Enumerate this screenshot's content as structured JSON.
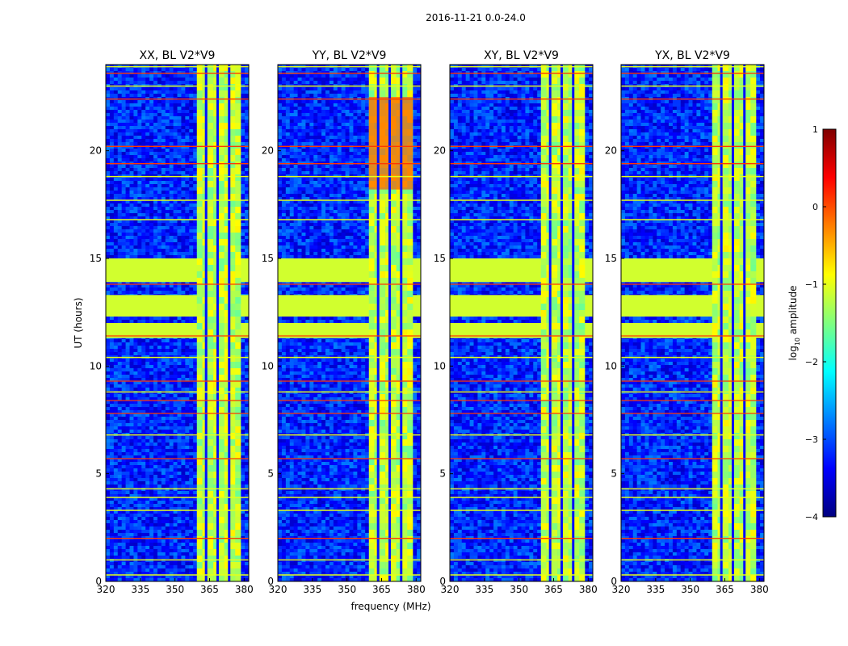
{
  "figure": {
    "suptitle": "2016-11-21 0.0-24.0",
    "xlabel": "frequency (MHz)",
    "ylabel": "UT (hours)"
  },
  "colorbar": {
    "label_prefix": "log",
    "label_sub": "10",
    "label_suffix": " amplitude",
    "range": [
      -4,
      1
    ],
    "ticks": [
      "1",
      "0",
      "−1",
      "−2",
      "−3",
      "−4"
    ],
    "tick_values": [
      1,
      0,
      -1,
      -2,
      -3,
      -4
    ],
    "colormap": "jet",
    "colors": [
      "#00007f",
      "#0000ff",
      "#007fff",
      "#00ffff",
      "#7fff7f",
      "#ffff00",
      "#ff7f00",
      "#ff0000",
      "#7f0000"
    ]
  },
  "chart_data": {
    "type": "heatmap",
    "value_units": "log10 amplitude",
    "panels": [
      {
        "title": "XX, BL V2*V9",
        "xlim": [
          320,
          382
        ],
        "ylim": [
          0,
          24
        ],
        "xticks": [
          "320",
          "335",
          "350",
          "365",
          "380"
        ],
        "xtick_values": [
          320,
          335,
          350,
          365,
          380
        ],
        "yticks": [
          "0",
          "5",
          "10",
          "15",
          "20"
        ],
        "ytick_values": [
          0,
          5,
          10,
          15,
          20
        ]
      },
      {
        "title": "YY, BL V2*V9",
        "xlim": [
          320,
          382
        ],
        "ylim": [
          0,
          24
        ],
        "xticks": [
          "320",
          "335",
          "350",
          "365",
          "380"
        ],
        "xtick_values": [
          320,
          335,
          350,
          365,
          380
        ],
        "yticks": [
          "0",
          "5",
          "10",
          "15",
          "20"
        ],
        "ytick_values": [
          0,
          5,
          10,
          15,
          20
        ]
      },
      {
        "title": "XY, BL V2*V9",
        "xlim": [
          320,
          382
        ],
        "ylim": [
          0,
          24
        ],
        "xticks": [
          "320",
          "335",
          "350",
          "365",
          "380"
        ],
        "xtick_values": [
          320,
          335,
          350,
          365,
          380
        ],
        "yticks": [
          "0",
          "5",
          "10",
          "15",
          "20"
        ],
        "ytick_values": [
          0,
          5,
          10,
          15,
          20
        ]
      },
      {
        "title": "YX, BL V2*V9",
        "xlim": [
          320,
          382
        ],
        "ylim": [
          0,
          24
        ],
        "xticks": [
          "320",
          "335",
          "350",
          "365",
          "380"
        ],
        "xtick_values": [
          320,
          335,
          350,
          365,
          380
        ],
        "yticks": [
          "0",
          "5",
          "10",
          "15",
          "20"
        ],
        "ytick_values": [
          0,
          5,
          10,
          15,
          20
        ]
      }
    ],
    "background_level": -3.2,
    "rfi_band": {
      "freq_range": [
        359.5,
        378.5
      ],
      "level": -1.2
    },
    "band_gaps_mhz": [
      363.5,
      368.5,
      373.5
    ],
    "uv_band_enhancement": {
      "panel": 1,
      "ut_range": [
        18.2,
        22.5
      ],
      "level": 0.0
    },
    "flagged_time_blocks": [
      {
        "ut_range": [
          13.9,
          15.0
        ],
        "level": -1.1
      },
      {
        "ut_range": [
          12.3,
          13.3
        ],
        "level": -1.1
      },
      {
        "ut_range": [
          11.3,
          12.0
        ],
        "level": -1.1
      }
    ],
    "hot_lines_ut": [
      2.0,
      5.7,
      7.8,
      8.4,
      9.3,
      13.8,
      11.4,
      19.4,
      20.2,
      22.4,
      23.6
    ],
    "warm_lines_ut": [
      0.3,
      1.0,
      3.3,
      3.9,
      4.3,
      6.8,
      8.8,
      10.4,
      16.8,
      17.7,
      18.8,
      23.0,
      23.9
    ]
  }
}
